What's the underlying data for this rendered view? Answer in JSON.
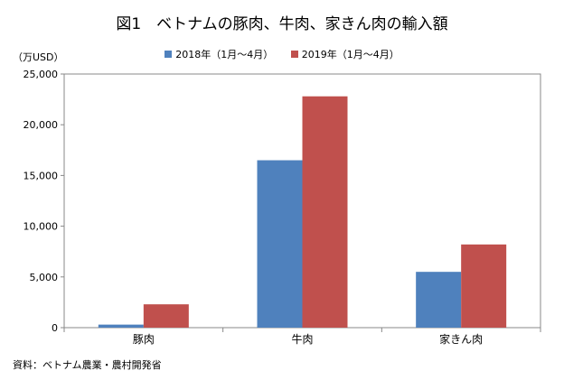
{
  "title": "図1　ベトナムの豚肉、牛肉、家きん肉の輸入額",
  "unit_label": "（万USD）",
  "source": "資料：ベトナム農業・農村開発省",
  "chart_data": {
    "type": "bar",
    "categories": [
      "豚肉",
      "牛肉",
      "家きん肉"
    ],
    "series": [
      {
        "name": "2018年（1月～4月）",
        "color": "#4f81bd",
        "values": [
          300,
          16500,
          5500
        ]
      },
      {
        "name": "2019年（1月～4月）",
        "color": "#c0504d",
        "values": [
          2300,
          22800,
          8200
        ]
      }
    ],
    "ylim": [
      0,
      25000
    ],
    "yticks": [
      0,
      5000,
      10000,
      15000,
      20000,
      25000
    ],
    "ytick_labels": [
      "0",
      "5,000",
      "10,000",
      "15,000",
      "20,000",
      "25,000"
    ],
    "legend_position": "top",
    "grid": false
  }
}
